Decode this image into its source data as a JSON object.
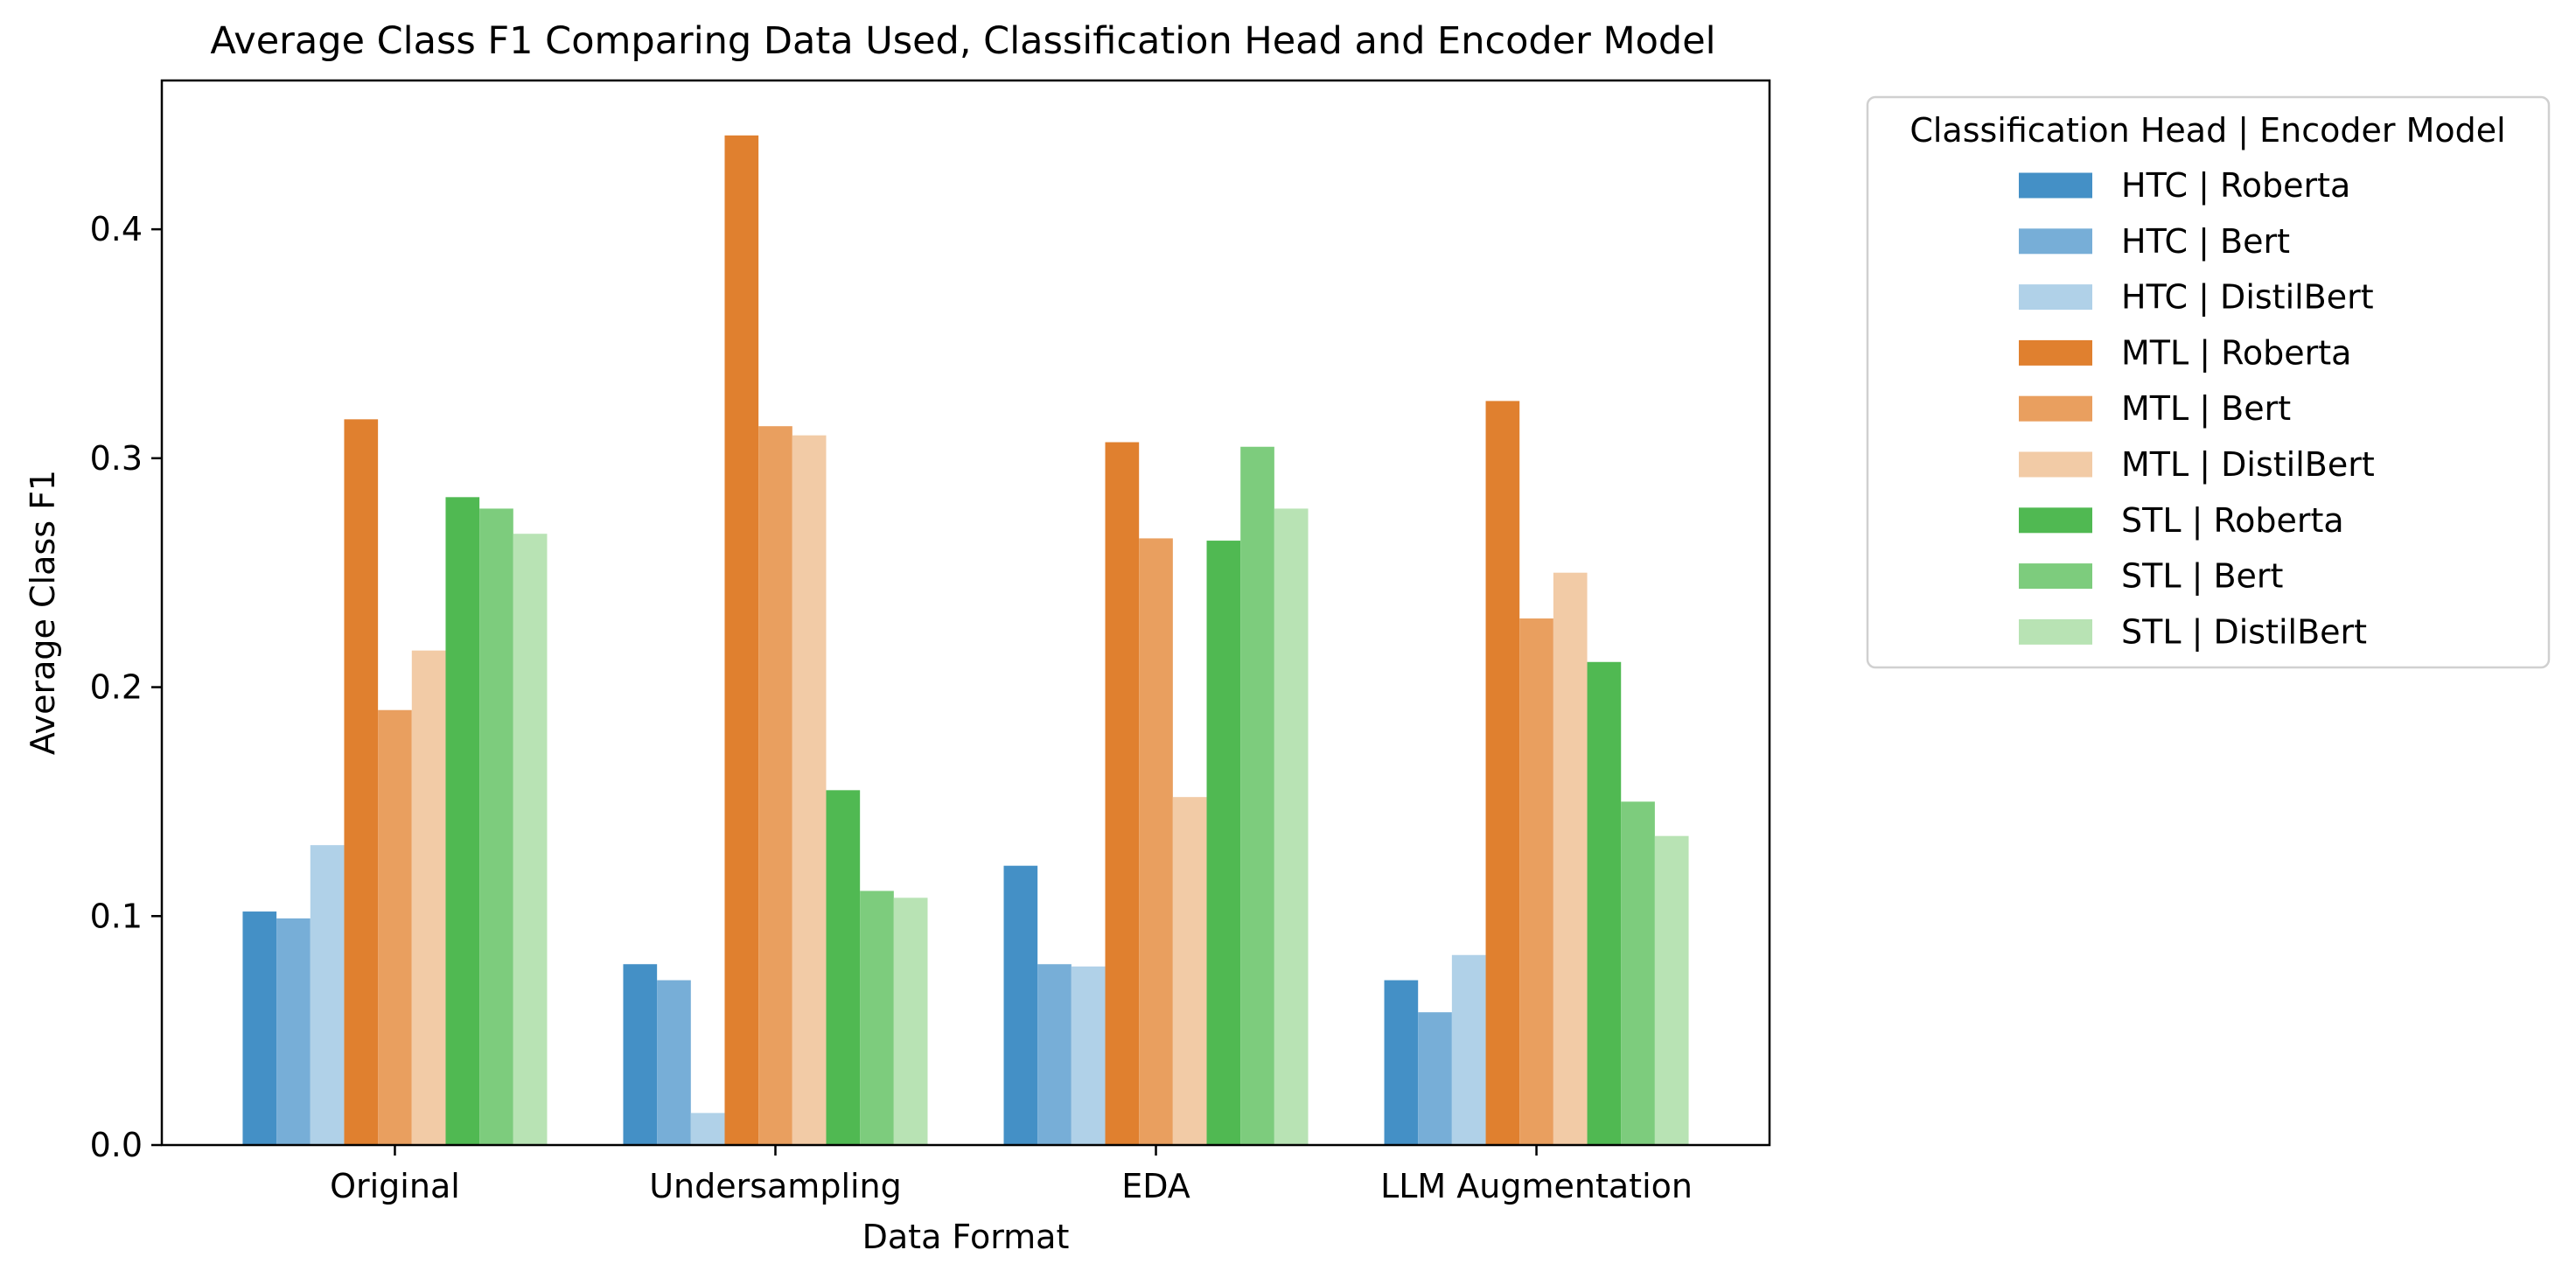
{
  "chart_data": {
    "type": "bar",
    "title": "Average Class F1 Comparing Data Used, Classification Head and Encoder Model",
    "xlabel": "Data Format",
    "ylabel": "Average Class F1",
    "categories": [
      "Original",
      "Undersampling",
      "EDA",
      "LLM Augmentation"
    ],
    "ylim": [
      0,
      0.465
    ],
    "yticks": [
      0.0,
      0.1,
      0.2,
      0.3,
      0.4
    ],
    "ytick_labels": [
      "0.0",
      "0.1",
      "0.2",
      "0.3",
      "0.4"
    ],
    "grid": false,
    "legend_title": "Classification Head | Encoder Model",
    "legend_position": "outside upper right",
    "series": [
      {
        "name": "HTC | Roberta",
        "color": "#4490c6",
        "values": [
          0.102,
          0.079,
          0.122,
          0.072
        ]
      },
      {
        "name": "HTC | Bert",
        "color": "#77aed7",
        "values": [
          0.099,
          0.072,
          0.079,
          0.058
        ]
      },
      {
        "name": "HTC | DistilBert",
        "color": "#b0d1e8",
        "values": [
          0.131,
          0.014,
          0.078,
          0.083
        ]
      },
      {
        "name": "MTL | Roberta",
        "color": "#e0802f",
        "values": [
          0.317,
          0.441,
          0.307,
          0.325
        ]
      },
      {
        "name": "MTL | Bert",
        "color": "#e99f5f",
        "values": [
          0.19,
          0.314,
          0.265,
          0.23
        ]
      },
      {
        "name": "MTL | DistilBert",
        "color": "#f2cba6",
        "values": [
          0.216,
          0.31,
          0.152,
          0.25
        ]
      },
      {
        "name": "STL | Roberta",
        "color": "#50b952",
        "values": [
          0.283,
          0.155,
          0.264,
          0.211
        ]
      },
      {
        "name": "STL | Bert",
        "color": "#7dcc7d",
        "values": [
          0.278,
          0.111,
          0.305,
          0.15
        ]
      },
      {
        "name": "STL | DistilBert",
        "color": "#b8e3b4",
        "values": [
          0.267,
          0.108,
          0.278,
          0.135
        ]
      }
    ]
  }
}
